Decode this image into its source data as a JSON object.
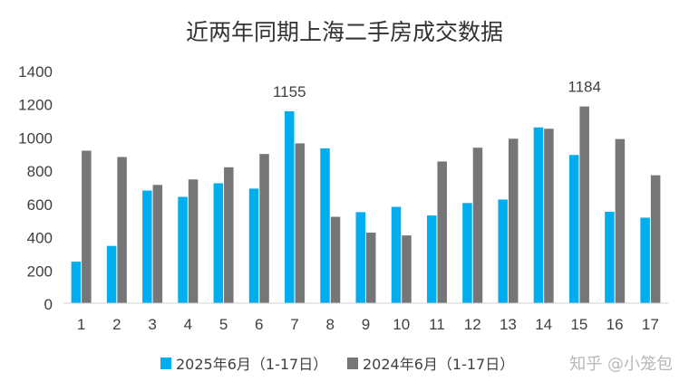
{
  "chart_data": {
    "type": "bar",
    "title": "近两年同期上海二手房成交数据",
    "categories": [
      "1",
      "2",
      "3",
      "4",
      "5",
      "6",
      "7",
      "8",
      "9",
      "10",
      "11",
      "12",
      "13",
      "14",
      "15",
      "16",
      "17"
    ],
    "series": [
      {
        "name": "2025年6月（1-17日）",
        "color": "#00AEEF",
        "values": [
          250,
          345,
          678,
          640,
          722,
          690,
          1155,
          932,
          548,
          580,
          528,
          603,
          624,
          1058,
          892,
          550,
          515
        ]
      },
      {
        "name": "2024年6月（1-17日）",
        "color": "#767679",
        "values": [
          918,
          880,
          712,
          745,
          818,
          898,
          962,
          520,
          425,
          408,
          853,
          936,
          990,
          1050,
          1184,
          988,
          770
        ]
      }
    ],
    "data_labels": [
      {
        "series": 0,
        "category": "7",
        "text": "1155"
      },
      {
        "series": 1,
        "category": "15",
        "text": "1184"
      }
    ],
    "ylim": [
      0,
      1400
    ],
    "yticks": [
      0,
      200,
      400,
      600,
      800,
      1000,
      1200,
      1400
    ],
    "grid": false,
    "legend_position": "bottom"
  },
  "watermark": "知乎 @小笼包"
}
